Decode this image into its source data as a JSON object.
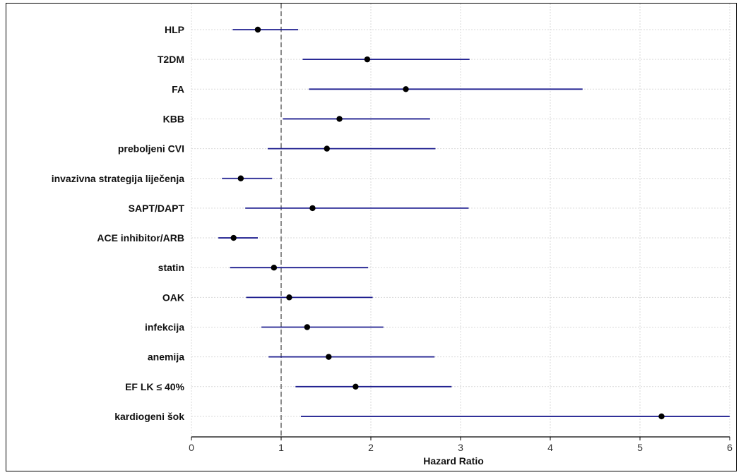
{
  "chart_data": {
    "type": "forest",
    "xlabel": "Hazard Ratio",
    "xlim": [
      0,
      6
    ],
    "xticks": [
      0,
      1,
      2,
      3,
      4,
      5,
      6
    ],
    "reference_line": 1,
    "grid": true,
    "colors": {
      "ci_line": "#1f1f8f",
      "point": "#000000",
      "grid": "#d9d9d9",
      "reference": "#808080"
    },
    "rows": [
      {
        "label": "HLP",
        "hr": 0.74,
        "ci_low": 0.46,
        "ci_high": 1.19
      },
      {
        "label": "T2DM",
        "hr": 1.96,
        "ci_low": 1.24,
        "ci_high": 3.1
      },
      {
        "label": "FA",
        "hr": 2.39,
        "ci_low": 1.31,
        "ci_high": 4.36
      },
      {
        "label": "KBB",
        "hr": 1.65,
        "ci_low": 1.02,
        "ci_high": 2.66
      },
      {
        "label": "preboljeni CVI",
        "hr": 1.51,
        "ci_low": 0.85,
        "ci_high": 2.72
      },
      {
        "label": "invazivna strategija liječenja",
        "hr": 0.55,
        "ci_low": 0.34,
        "ci_high": 0.9
      },
      {
        "label": "SAPT/DAPT",
        "hr": 1.35,
        "ci_low": 0.6,
        "ci_high": 3.09
      },
      {
        "label": "ACE inhibitor/ARB",
        "hr": 0.47,
        "ci_low": 0.3,
        "ci_high": 0.74
      },
      {
        "label": "statin",
        "hr": 0.92,
        "ci_low": 0.43,
        "ci_high": 1.97
      },
      {
        "label": "OAK",
        "hr": 1.09,
        "ci_low": 0.61,
        "ci_high": 2.02
      },
      {
        "label": "infekcija",
        "hr": 1.29,
        "ci_low": 0.78,
        "ci_high": 2.14
      },
      {
        "label": "anemija",
        "hr": 1.53,
        "ci_low": 0.86,
        "ci_high": 2.71
      },
      {
        "label": "EF LK ≤ 40%",
        "hr": 1.83,
        "ci_low": 1.16,
        "ci_high": 2.9
      },
      {
        "label": "kardiogeni šok",
        "hr": 5.24,
        "ci_low": 1.22,
        "ci_high": 6.0
      }
    ]
  }
}
